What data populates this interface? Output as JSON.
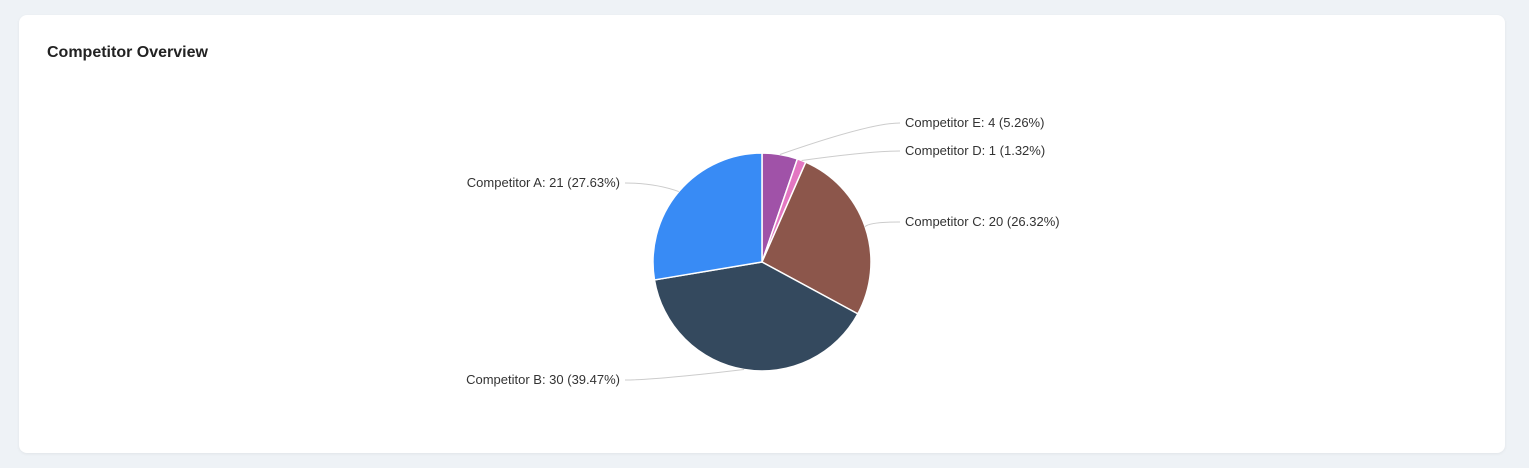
{
  "card": {
    "title": "Competitor Overview"
  },
  "chart_data": {
    "type": "pie",
    "title": "Competitor Overview",
    "start": "top, clockwise",
    "slices": [
      {
        "name": "Competitor E",
        "value": 4,
        "percent": "5.26%",
        "color": "#a052a8",
        "label": "Competitor E: 4 (5.26%)"
      },
      {
        "name": "Competitor D",
        "value": 1,
        "percent": "1.32%",
        "color": "#e377c2",
        "label": "Competitor D: 1 (1.32%)"
      },
      {
        "name": "Competitor C",
        "value": 20,
        "percent": "26.32%",
        "color": "#8c564b",
        "label": "Competitor C: 20 (26.32%)"
      },
      {
        "name": "Competitor B",
        "value": 30,
        "percent": "39.47%",
        "color": "#34495e",
        "label": "Competitor B: 30 (39.47%)"
      },
      {
        "name": "Competitor A",
        "value": 21,
        "percent": "27.63%",
        "color": "#388bf5",
        "label": "Competitor A: 21 (27.63%)"
      }
    ]
  }
}
